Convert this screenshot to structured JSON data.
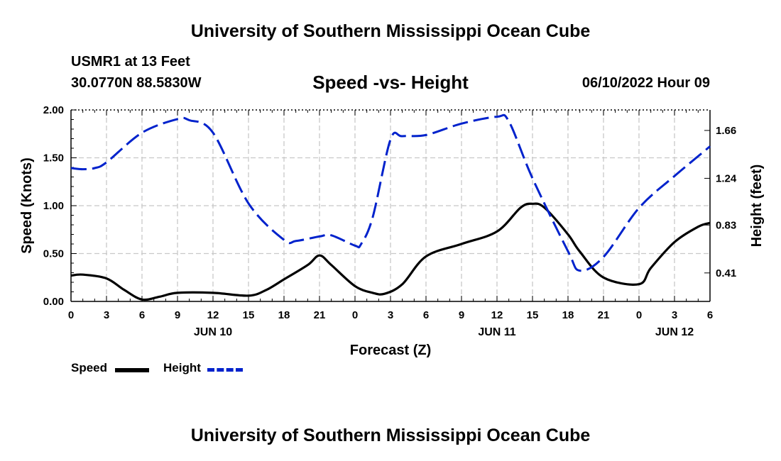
{
  "header": {
    "title": "University of Southern Mississippi Ocean Cube",
    "station": "USMR1 at 13 Feet",
    "coordinates": "30.0770N  88.5830W",
    "subtitle": "Speed -vs- Height",
    "datetime": "06/10/2022 Hour 09"
  },
  "footer": {
    "title": "University of Southern Mississippi Ocean Cube"
  },
  "legend": {
    "speed_label": "Speed",
    "height_label": "Height"
  },
  "chart_data": {
    "type": "line",
    "title": "Speed -vs- Height",
    "xlabel": "Forecast (Z)",
    "ylabel": "Speed (Knots)",
    "y2label": "Height (feet)",
    "x_unit": "hours since 06/10/2022 00Z",
    "xlim": [
      0,
      54
    ],
    "ylim": [
      0,
      2.0
    ],
    "y2lim": [
      0.16,
      1.84
    ],
    "x_ticks": [
      0,
      3,
      6,
      9,
      12,
      15,
      18,
      21,
      24,
      27,
      30,
      33,
      36,
      39,
      42,
      45,
      48,
      51,
      54
    ],
    "x_tick_labels": [
      "0",
      "3",
      "6",
      "9",
      "12",
      "15",
      "18",
      "21",
      "0",
      "3",
      "6",
      "9",
      "12",
      "15",
      "18",
      "21",
      "0",
      "3",
      "6"
    ],
    "day_labels": [
      {
        "x": 12,
        "label": "JUN 10"
      },
      {
        "x": 36,
        "label": "JUN 11"
      },
      {
        "x": 51,
        "label": "JUN 12"
      }
    ],
    "y_ticks": [
      0,
      0.5,
      1.0,
      1.5,
      2.0
    ],
    "y_tick_labels": [
      "0.00",
      "0.50",
      "1.00",
      "1.50",
      "2.00"
    ],
    "y2_ticks": [
      0.41,
      0.83,
      1.24,
      1.66
    ],
    "y2_tick_labels": [
      "0.41",
      "0.83",
      "1.24",
      "1.66"
    ],
    "grid": true,
    "series": [
      {
        "name": "Speed",
        "axis": "left",
        "color": "#000000",
        "style": "solid",
        "x": [
          0,
          1,
          3,
          4.5,
          6,
          7.5,
          9,
          12,
          15,
          16.5,
          18,
          20,
          21,
          22,
          24,
          25.5,
          26.5,
          28,
          30,
          33,
          36,
          38,
          39,
          40,
          42,
          43,
          45,
          48,
          49,
          51,
          53,
          54
        ],
        "y": [
          0.27,
          0.28,
          0.24,
          0.12,
          0.02,
          0.05,
          0.09,
          0.09,
          0.06,
          0.12,
          0.23,
          0.38,
          0.48,
          0.38,
          0.16,
          0.09,
          0.08,
          0.18,
          0.47,
          0.6,
          0.73,
          0.98,
          1.02,
          0.98,
          0.7,
          0.52,
          0.25,
          0.18,
          0.35,
          0.62,
          0.78,
          0.82
        ]
      },
      {
        "name": "Height",
        "axis": "right",
        "color": "#0022cc",
        "style": "dashed",
        "x": [
          0,
          1,
          2,
          3,
          6,
          9,
          10,
          12,
          15,
          18,
          19,
          21,
          22,
          24,
          24.5,
          25.5,
          27,
          28,
          30,
          33,
          36,
          37,
          39,
          42,
          43,
          45,
          48,
          51,
          54
        ],
        "y": [
          1.33,
          1.32,
          1.33,
          1.38,
          1.64,
          1.76,
          1.75,
          1.64,
          1.02,
          0.7,
          0.69,
          0.73,
          0.74,
          0.65,
          0.66,
          0.9,
          1.58,
          1.61,
          1.62,
          1.72,
          1.78,
          1.74,
          1.24,
          0.6,
          0.43,
          0.55,
          0.98,
          1.26,
          1.52
        ]
      }
    ]
  }
}
